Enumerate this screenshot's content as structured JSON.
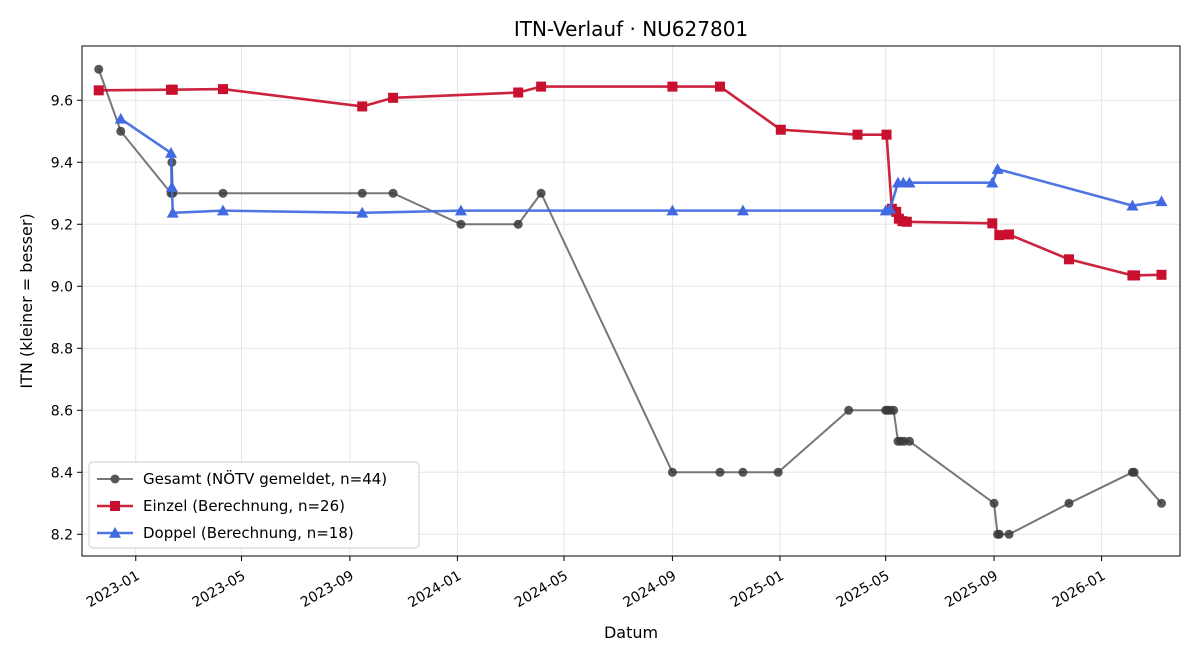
{
  "chart_data": {
    "type": "line",
    "title": "ITN-Verlauf · NU627801",
    "xlabel": "Datum",
    "ylabel": "ITN  (kleiner = besser)",
    "x_type": "date",
    "xlim": [
      "2022-11-01",
      "2026-03-31"
    ],
    "ylim": [
      8.13,
      9.775
    ],
    "x_ticks": [
      "2023-01-01",
      "2023-05-01",
      "2023-09-01",
      "2024-01-01",
      "2024-05-01",
      "2024-09-01",
      "2025-01-01",
      "2025-05-01",
      "2025-09-01",
      "2026-01-01"
    ],
    "x_tick_labels": [
      "2023-01",
      "2023-05",
      "2023-09",
      "2024-01",
      "2024-05",
      "2024-09",
      "2025-01",
      "2025-05",
      "2025-09",
      "2026-01"
    ],
    "y_ticks": [
      8.2,
      8.4,
      8.6,
      8.8,
      9.0,
      9.2,
      9.4,
      9.6
    ],
    "y_tick_labels": [
      "8.2",
      "8.4",
      "8.6",
      "8.8",
      "9.0",
      "9.2",
      "9.4",
      "9.6"
    ],
    "grid": true,
    "legend_position": "lower-left",
    "series": [
      {
        "name": "Gesamt (NÖTV gemeldet, n=44)",
        "color": "#555555",
        "marker": "circle",
        "points": [
          [
            "2022-11-20",
            9.7
          ],
          [
            "2022-12-15",
            9.5
          ],
          [
            "2023-02-10",
            9.3
          ],
          [
            "2023-02-11",
            9.4
          ],
          [
            "2023-02-12",
            9.3
          ],
          [
            "2023-04-10",
            9.3
          ],
          [
            "2023-09-15",
            9.3
          ],
          [
            "2023-10-20",
            9.3
          ],
          [
            "2024-01-05",
            9.2
          ],
          [
            "2024-03-10",
            9.2
          ],
          [
            "2024-04-05",
            9.3
          ],
          [
            "2024-09-01",
            8.4
          ],
          [
            "2024-10-25",
            8.4
          ],
          [
            "2024-11-20",
            8.4
          ],
          [
            "2024-12-30",
            8.4
          ],
          [
            "2025-03-20",
            8.6
          ],
          [
            "2025-05-01",
            8.6
          ],
          [
            "2025-05-03",
            8.6
          ],
          [
            "2025-05-06",
            8.6
          ],
          [
            "2025-05-10",
            8.6
          ],
          [
            "2025-05-15",
            8.5
          ],
          [
            "2025-05-18",
            8.5
          ],
          [
            "2025-05-22",
            8.5
          ],
          [
            "2025-05-28",
            8.5
          ],
          [
            "2025-09-01",
            8.3
          ],
          [
            "2025-09-05",
            8.2
          ],
          [
            "2025-09-07",
            8.2
          ],
          [
            "2025-09-18",
            8.2
          ],
          [
            "2025-11-25",
            8.3
          ],
          [
            "2026-02-05",
            8.4
          ],
          [
            "2026-02-07",
            8.4
          ],
          [
            "2026-03-10",
            8.3
          ]
        ]
      },
      {
        "name": "Einzel (Berechnung, n=26)",
        "color": "#c8102e",
        "marker": "square",
        "points": [
          [
            "2022-11-20",
            9.632
          ],
          [
            "2023-02-10",
            9.634
          ],
          [
            "2023-02-12",
            9.634
          ],
          [
            "2023-04-10",
            9.636
          ],
          [
            "2023-09-15",
            9.58
          ],
          [
            "2023-10-20",
            9.608
          ],
          [
            "2024-03-10",
            9.625
          ],
          [
            "2024-04-05",
            9.644
          ],
          [
            "2024-09-01",
            9.644
          ],
          [
            "2024-10-25",
            9.644
          ],
          [
            "2025-01-02",
            9.505
          ],
          [
            "2025-03-30",
            9.489
          ],
          [
            "2025-05-02",
            9.489
          ],
          [
            "2025-05-08",
            9.25
          ],
          [
            "2025-05-13",
            9.24
          ],
          [
            "2025-05-16",
            9.218
          ],
          [
            "2025-05-20",
            9.21
          ],
          [
            "2025-05-25",
            9.208
          ],
          [
            "2025-08-30",
            9.203
          ],
          [
            "2025-09-07",
            9.165
          ],
          [
            "2025-09-18",
            9.167
          ],
          [
            "2025-11-25",
            9.087
          ],
          [
            "2026-02-05",
            9.035
          ],
          [
            "2026-02-08",
            9.035
          ],
          [
            "2026-03-10",
            9.037
          ]
        ]
      },
      {
        "name": "Doppel (Berechnung, n=18)",
        "color": "#4169e1",
        "marker": "triangle",
        "points": [
          [
            "2022-12-15",
            9.54
          ],
          [
            "2023-02-10",
            9.43
          ],
          [
            "2023-02-11",
            9.32
          ],
          [
            "2023-02-12",
            9.237
          ],
          [
            "2023-04-10",
            9.244
          ],
          [
            "2023-09-15",
            9.237
          ],
          [
            "2024-01-05",
            9.244
          ],
          [
            "2024-09-01",
            9.244
          ],
          [
            "2024-11-20",
            9.244
          ],
          [
            "2025-05-01",
            9.244
          ],
          [
            "2025-05-06",
            9.25
          ],
          [
            "2025-05-15",
            9.334
          ],
          [
            "2025-05-21",
            9.334
          ],
          [
            "2025-05-28",
            9.334
          ],
          [
            "2025-08-30",
            9.334
          ],
          [
            "2025-09-05",
            9.378
          ],
          [
            "2026-02-05",
            9.26
          ],
          [
            "2026-03-10",
            9.274
          ]
        ]
      }
    ]
  }
}
